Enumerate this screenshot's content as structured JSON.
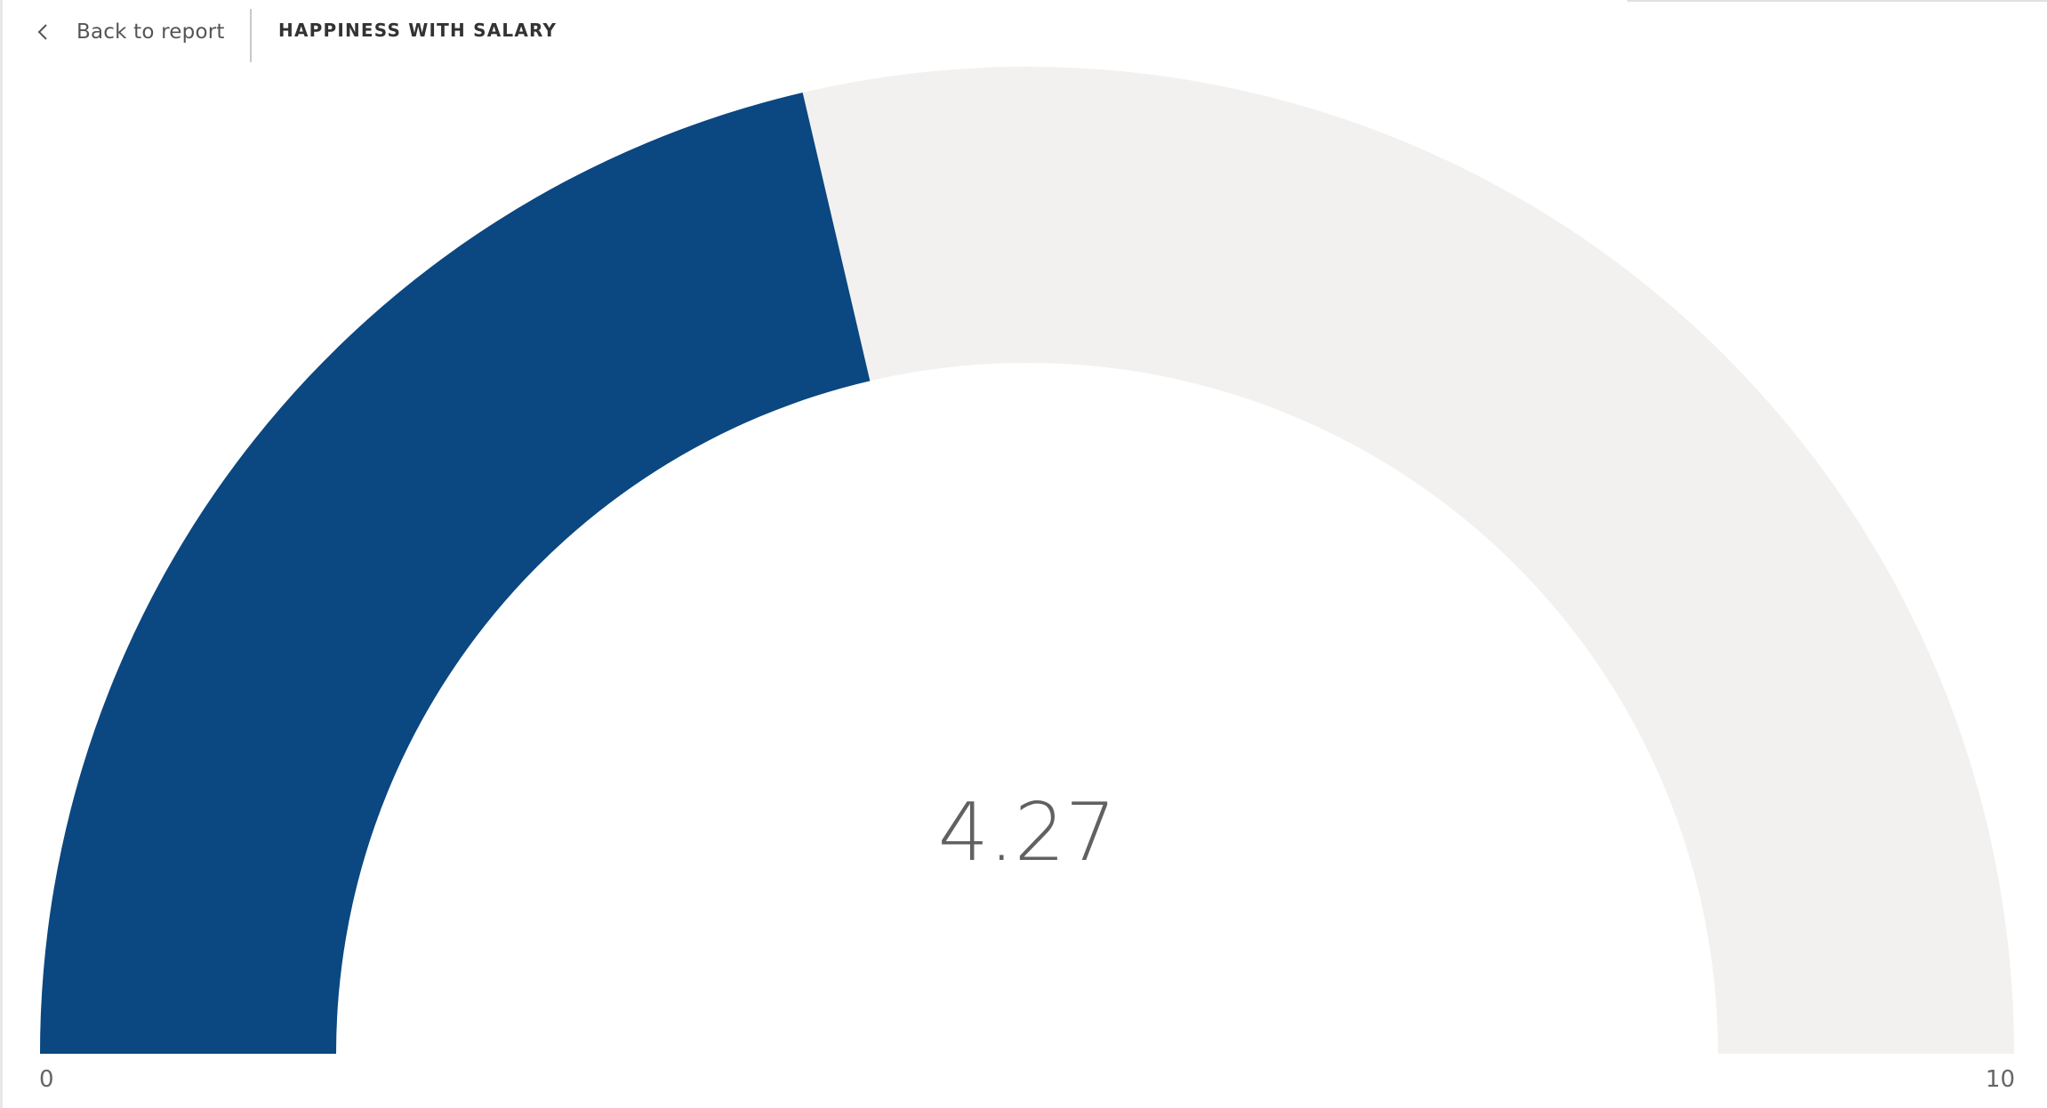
{
  "header": {
    "back_label": "Back to report",
    "title": "HAPPINESS WITH SALARY"
  },
  "icons": {
    "back": "chevron-left-icon"
  },
  "colors": {
    "fill": "#0b4781",
    "track": "#f2f1f0",
    "value_text": "#616161"
  },
  "chart_data": {
    "type": "gauge",
    "value": 4.27,
    "value_label": "4.27",
    "min": 0,
    "max": 10,
    "min_label": "0",
    "max_label": "10"
  }
}
